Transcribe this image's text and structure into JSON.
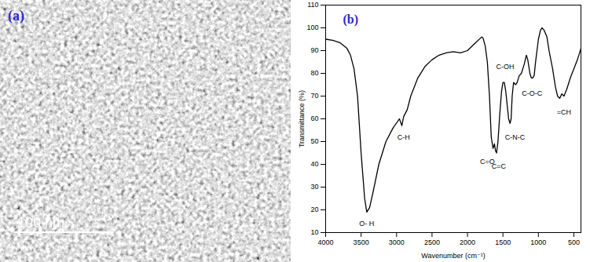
{
  "image": {
    "label": "(a)",
    "scale_bar": "100 nm"
  },
  "chart_data": {
    "type": "line",
    "title": "(b)",
    "x_label": "Wavenumber (cm⁻¹)",
    "y_label": "Transmittance (%)",
    "xlim": [
      4000,
      400
    ],
    "xticks": [
      4000,
      3500,
      3000,
      2500,
      2000,
      1500,
      1000,
      500
    ],
    "ylim": [
      10,
      110
    ],
    "yticks": [
      10,
      20,
      30,
      40,
      50,
      60,
      70,
      80,
      90,
      100,
      110
    ],
    "grid": false,
    "color": "#000000",
    "x": [
      4000,
      3900,
      3800,
      3700,
      3650,
      3600,
      3550,
      3500,
      3450,
      3420,
      3380,
      3330,
      3250,
      3150,
      3050,
      2960,
      2925,
      2900,
      2850,
      2800,
      2700,
      2600,
      2500,
      2400,
      2300,
      2200,
      2100,
      2000,
      1900,
      1800,
      1780,
      1750,
      1720,
      1690,
      1665,
      1640,
      1620,
      1605,
      1590,
      1570,
      1545,
      1520,
      1500,
      1480,
      1460,
      1440,
      1420,
      1400,
      1385,
      1370,
      1350,
      1320,
      1300,
      1270,
      1240,
      1200,
      1170,
      1150,
      1120,
      1100,
      1080,
      1060,
      1040,
      1000,
      970,
      950,
      920,
      880,
      850,
      800,
      760,
      730,
      700,
      670,
      640,
      600,
      550,
      500,
      450,
      400
    ],
    "values": [
      95,
      94.5,
      93.5,
      91,
      88,
      82,
      70,
      45,
      25,
      19,
      21,
      28,
      40,
      50,
      56,
      60,
      57,
      61,
      64,
      70,
      78,
      83,
      86,
      88,
      89,
      89.5,
      89,
      90,
      93,
      96,
      95.5,
      92,
      85,
      70,
      52,
      47,
      49,
      46,
      45,
      50,
      62,
      72,
      76,
      76,
      72,
      66,
      60,
      58,
      60,
      70,
      76,
      75,
      76,
      79,
      80,
      84,
      88,
      86,
      80,
      78,
      78,
      79,
      85,
      95,
      99,
      100,
      99,
      96,
      90,
      82,
      74,
      70,
      69,
      71,
      70,
      73,
      78,
      82,
      86,
      91
    ],
    "annotations": [
      {
        "text": "O- H",
        "x": 3420,
        "y": 14
      },
      {
        "text": "C-H",
        "x": 2900,
        "y": 52
      },
      {
        "text": "C=O",
        "x": 1720,
        "y": 41
      },
      {
        "text": "C=C",
        "x": 1560,
        "y": 39
      },
      {
        "text": "C-OH",
        "x": 1470,
        "y": 83
      },
      {
        "text": "C-N-C",
        "x": 1330,
        "y": 52
      },
      {
        "text": "C-O-C",
        "x": 1090,
        "y": 71
      },
      {
        "text": "=CH",
        "x": 640,
        "y": 63
      }
    ]
  }
}
